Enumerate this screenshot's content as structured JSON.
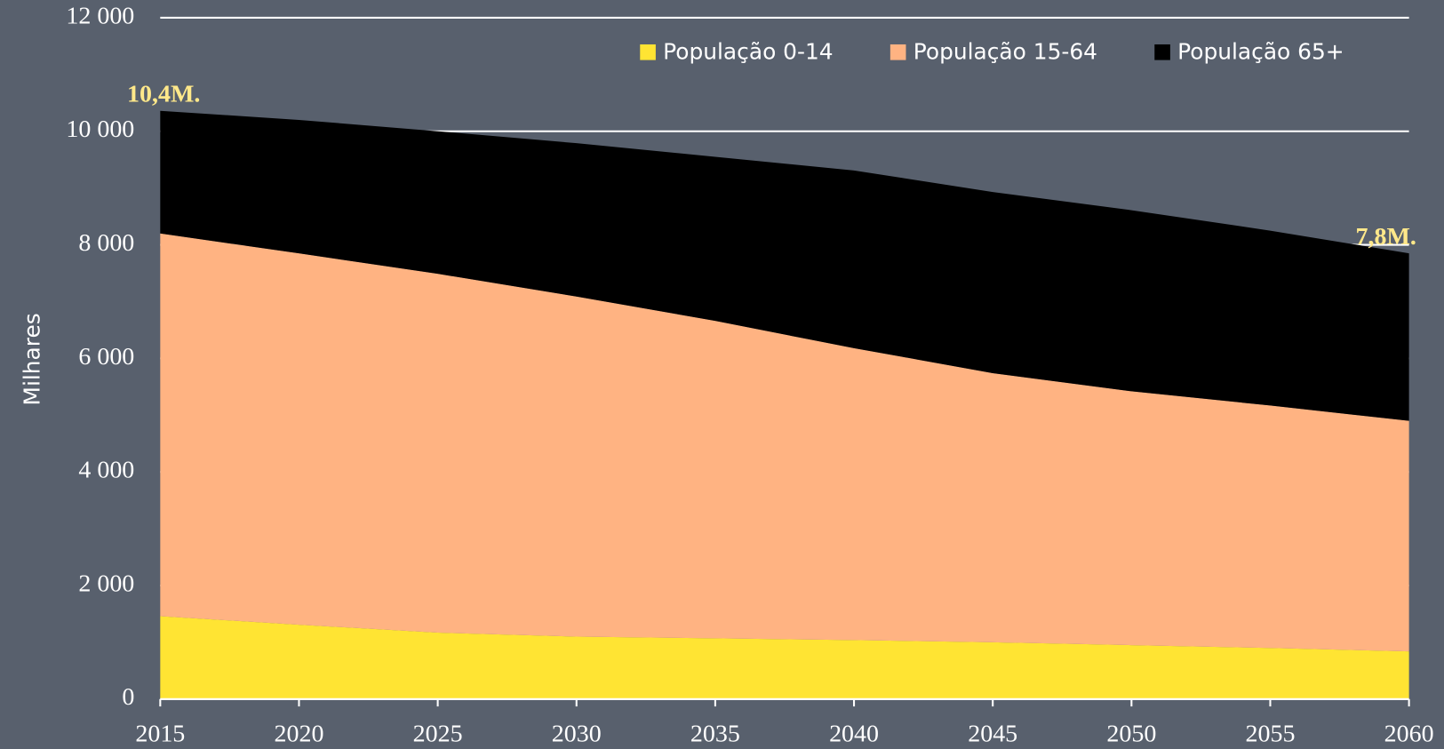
{
  "chart_data": {
    "type": "area",
    "stacked": true,
    "y_label": "Milhares",
    "x": [
      2015,
      2020,
      2025,
      2030,
      2035,
      2040,
      2045,
      2050,
      2055,
      2060
    ],
    "series": [
      {
        "name": "População 0-14",
        "color": "#ffe433",
        "values": [
          1460,
          1310,
          1170,
          1100,
          1070,
          1040,
          1000,
          950,
          900,
          840
        ]
      },
      {
        "name": "População 15-64",
        "color": "#ffb382",
        "values": [
          6740,
          6540,
          6320,
          5990,
          5590,
          5140,
          4740,
          4470,
          4270,
          4060
        ]
      },
      {
        "name": "População 65+",
        "color": "#000000",
        "values": [
          2160,
          2350,
          2510,
          2700,
          2890,
          3130,
          3190,
          3190,
          3080,
          2950
        ]
      }
    ],
    "annotations": [
      {
        "text": "10,4M.",
        "x": 2015
      },
      {
        "text": "7,8M.",
        "x": 2060
      }
    ],
    "xlim": [
      2015,
      2060
    ],
    "xticks": [
      2015,
      2020,
      2025,
      2030,
      2035,
      2040,
      2045,
      2050,
      2055,
      2060
    ],
    "ylim": [
      0,
      12000
    ],
    "yticks": [
      0,
      {
        "value": 2000,
        "label": "2 000"
      },
      {
        "value": 4000,
        "label": "4 000"
      },
      {
        "value": 6000,
        "label": "6 000"
      },
      {
        "value": 8000,
        "label": "8 000"
      },
      {
        "value": 10000,
        "label": "10 000"
      },
      {
        "value": 12000,
        "label": "12 000"
      }
    ],
    "grid": true,
    "grid_color": "#ffffff",
    "legend": "top-right"
  }
}
